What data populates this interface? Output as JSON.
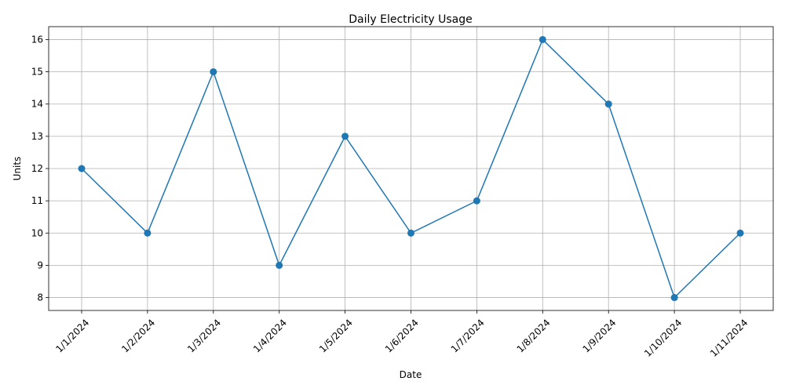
{
  "chart_data": {
    "type": "line",
    "title": "Daily Electricity Usage",
    "xlabel": "Date",
    "ylabel": "Units",
    "categories": [
      "1/1/2024",
      "1/2/2024",
      "1/3/2024",
      "1/4/2024",
      "1/5/2024",
      "1/6/2024",
      "1/7/2024",
      "1/8/2024",
      "1/9/2024",
      "1/10/2024",
      "1/11/2024"
    ],
    "series": [
      {
        "values": [
          12,
          10,
          15,
          9,
          13,
          10,
          11,
          16,
          14,
          8,
          10
        ],
        "color": "#1f77b4",
        "marker": "circle"
      }
    ],
    "yticks": [
      8,
      9,
      10,
      11,
      12,
      13,
      14,
      15,
      16
    ],
    "ylim": [
      7.6,
      16.4
    ],
    "grid": true,
    "xtick_rotation": 45
  }
}
